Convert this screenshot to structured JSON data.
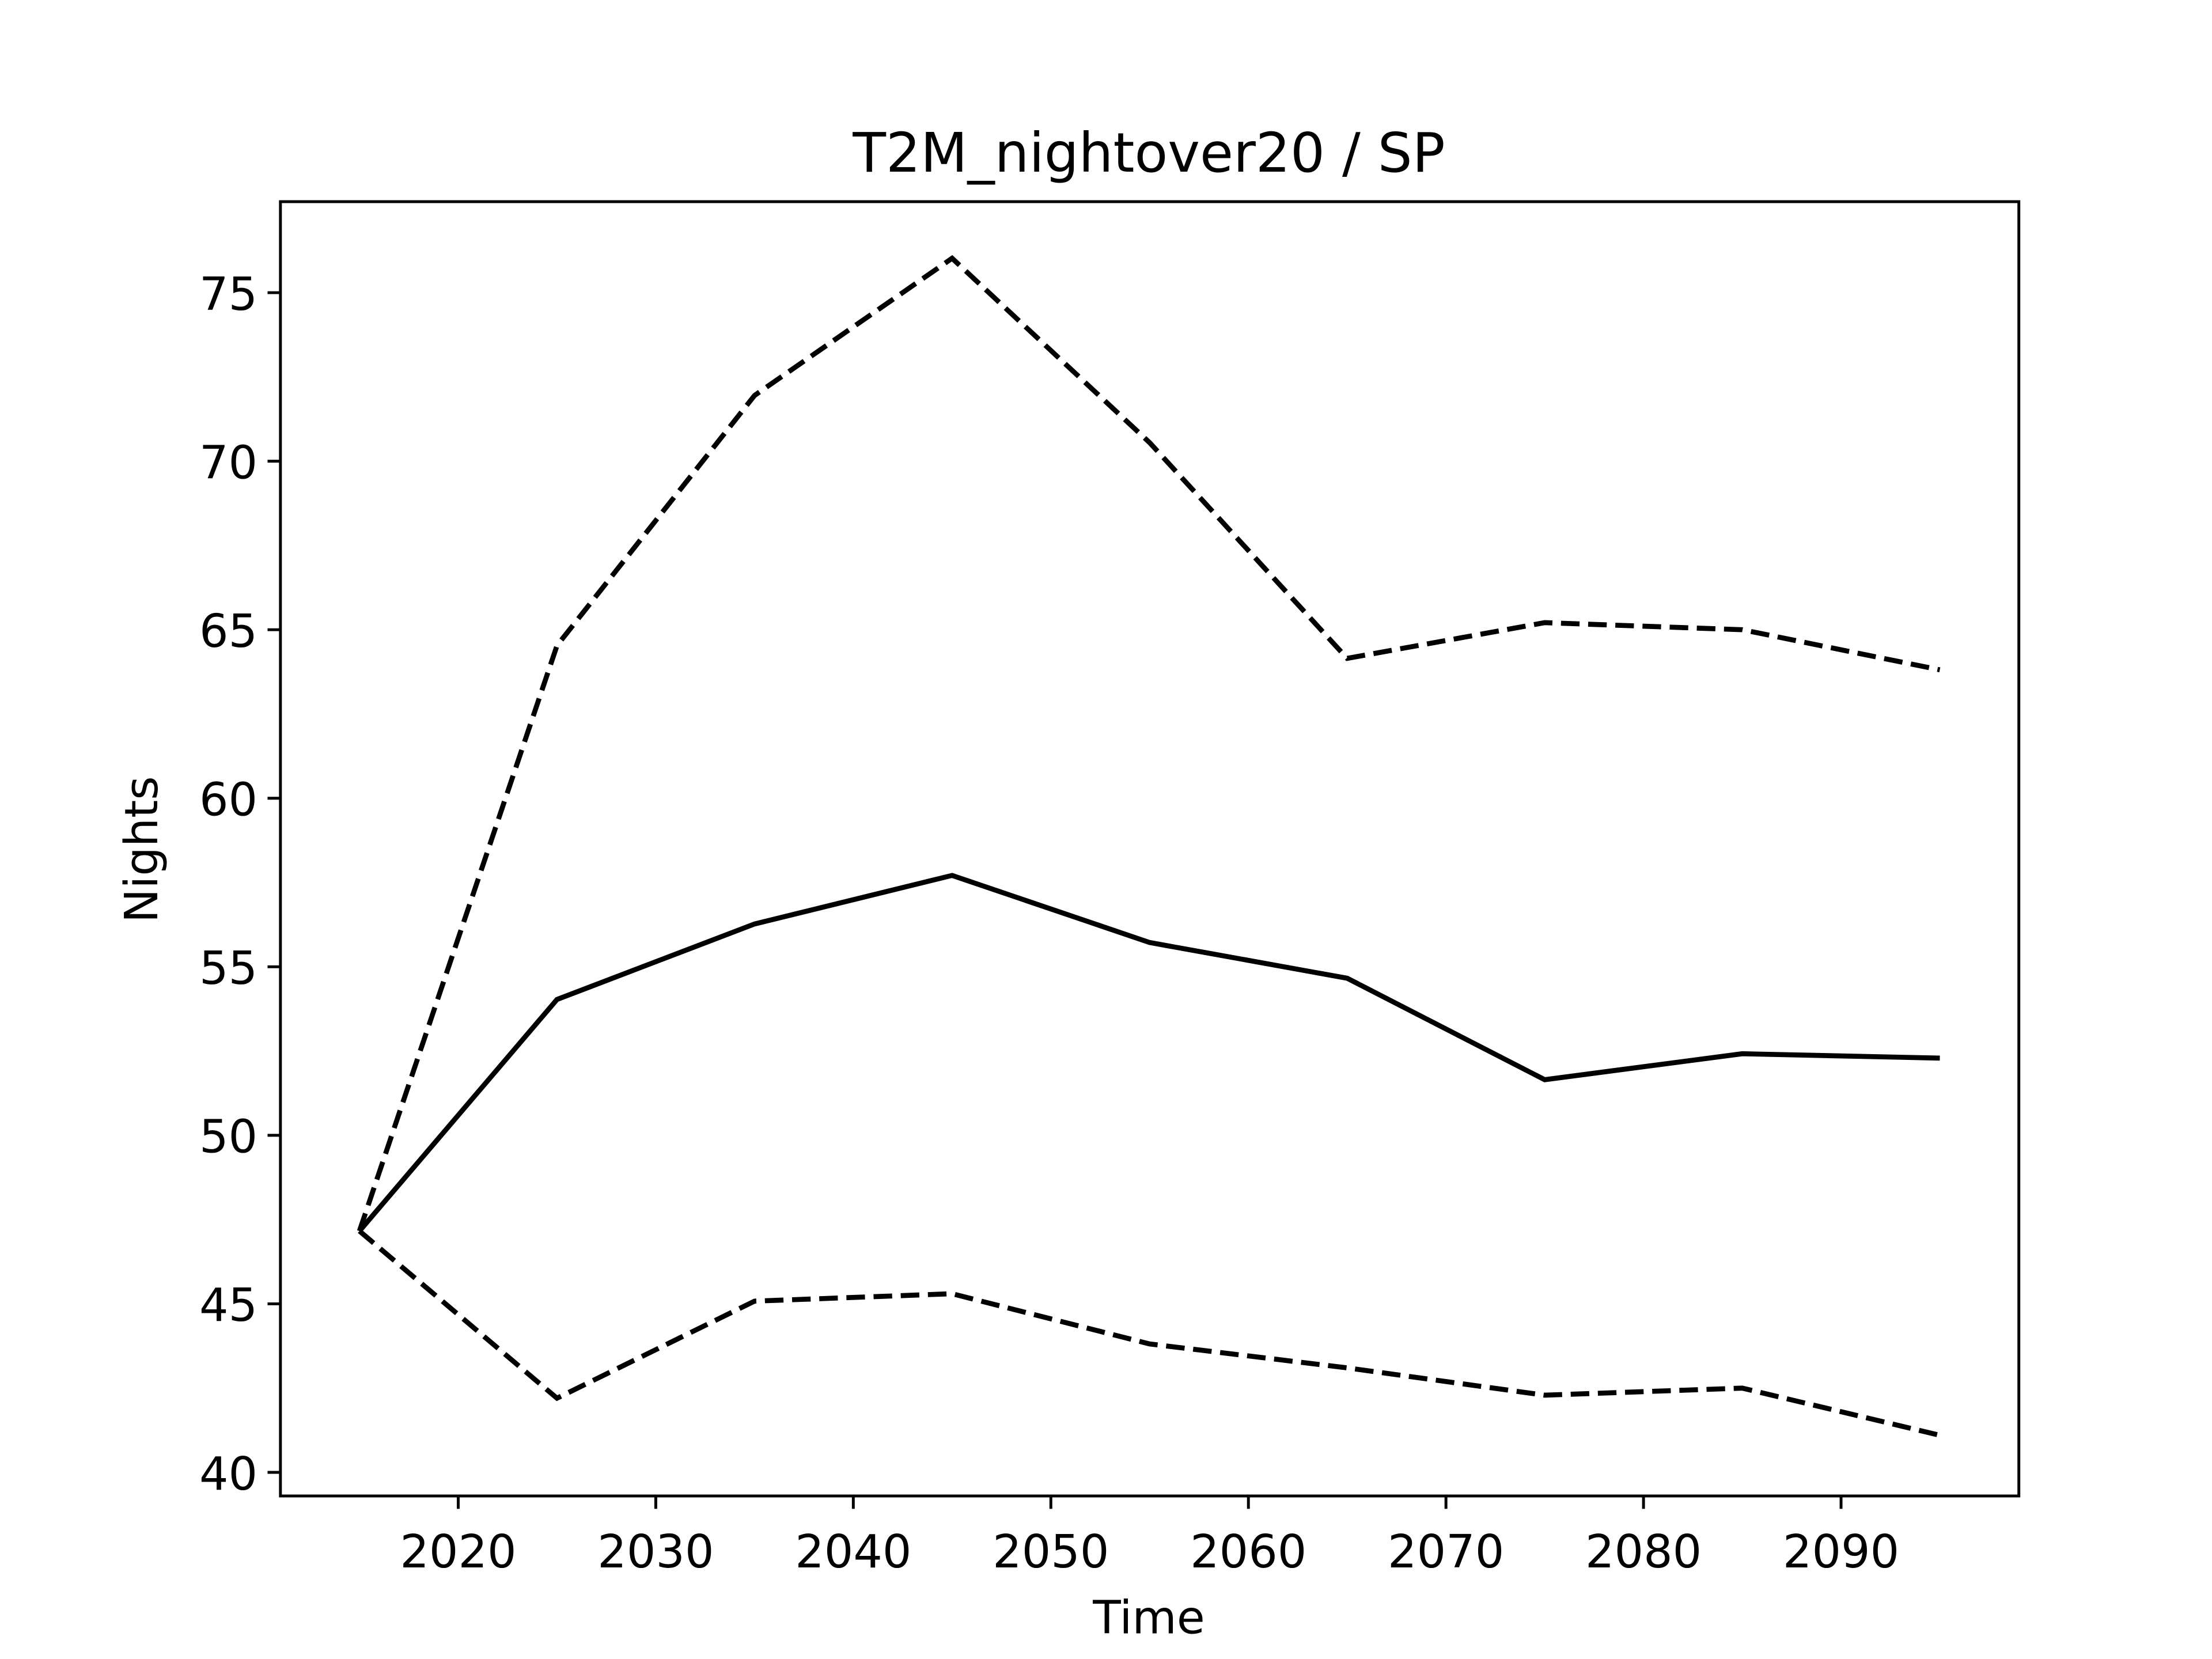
{
  "chart_data": {
    "type": "line",
    "title": "T2M_nightover20 / SP",
    "xlabel": "Time",
    "ylabel": "Nights",
    "x": [
      2015,
      2025,
      2035,
      2045,
      2055,
      2065,
      2075,
      2085,
      2095
    ],
    "series": [
      {
        "color": "#000000",
        "linestyle": "solid",
        "values": [
          47.16,
          54.03,
          56.27,
          57.71,
          55.72,
          54.66,
          51.65,
          52.42,
          52.29
        ]
      },
      {
        "color": "#000000",
        "linestyle": "dashed",
        "values": [
          47.16,
          64.53,
          71.95,
          76.02,
          70.55,
          64.15,
          65.21,
          65.0,
          63.81
        ]
      },
      {
        "color": "#000000",
        "linestyle": "dashed",
        "values": [
          47.16,
          42.2,
          45.08,
          45.3,
          43.81,
          43.1,
          42.29,
          42.5,
          41.1
        ]
      }
    ],
    "xlim": [
      2011,
      2099
    ],
    "xticks": [
      2020,
      2030,
      2040,
      2050,
      2060,
      2070,
      2080,
      2090
    ],
    "ylim": [
      39.3,
      77.7
    ],
    "yticks": [
      40,
      45,
      50,
      55,
      60,
      65,
      70,
      75
    ],
    "grid": false
  }
}
